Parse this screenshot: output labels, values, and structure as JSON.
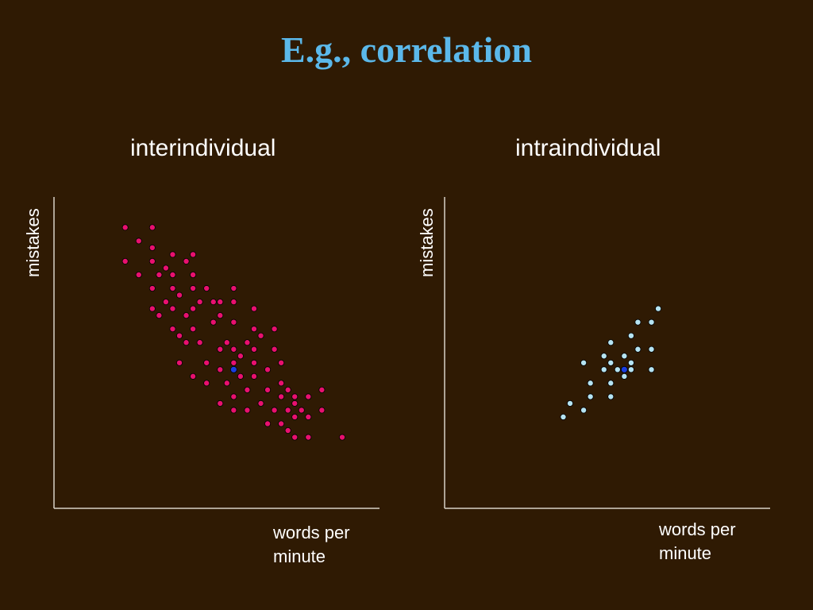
{
  "slide": {
    "title": "E.g., correlation"
  },
  "colors": {
    "background": "#2f1a03",
    "title": "#5bb8ea",
    "axis": "#d8d2c8",
    "interindividual_points": "#e8116e",
    "intraindividual_points": "#b6e4f2",
    "mean_point": "#1a3ee0"
  },
  "chart_data": [
    {
      "type": "scatter",
      "title": "interindividual",
      "xlabel": "words per minute",
      "ylabel": "mistakes",
      "xlim": [
        0,
        48
      ],
      "ylim": [
        0,
        46
      ],
      "grid": false,
      "tick_labels": false,
      "points": [
        [
          10.5,
          41.5
        ],
        [
          14.5,
          41.5
        ],
        [
          12.5,
          39.5
        ],
        [
          14.5,
          38.5
        ],
        [
          10.5,
          36.5
        ],
        [
          14.5,
          36.5
        ],
        [
          17.5,
          37.5
        ],
        [
          19.5,
          36.5
        ],
        [
          20.5,
          37.5
        ],
        [
          16.5,
          35.5
        ],
        [
          12.5,
          34.5
        ],
        [
          15.5,
          34.5
        ],
        [
          17.5,
          34.5
        ],
        [
          20.5,
          34.5
        ],
        [
          14.5,
          32.5
        ],
        [
          17.5,
          32.5
        ],
        [
          20.5,
          32.5
        ],
        [
          22.5,
          32.5
        ],
        [
          26.5,
          32.5
        ],
        [
          18.5,
          31.5
        ],
        [
          16.5,
          30.5
        ],
        [
          21.5,
          30.5
        ],
        [
          23.5,
          30.5
        ],
        [
          24.5,
          30.5
        ],
        [
          26.5,
          30.5
        ],
        [
          14.5,
          29.5
        ],
        [
          17.5,
          29.5
        ],
        [
          20.5,
          29.5
        ],
        [
          29.5,
          29.5
        ],
        [
          15.5,
          28.5
        ],
        [
          19.5,
          28.5
        ],
        [
          24.5,
          28.5
        ],
        [
          23.5,
          27.5
        ],
        [
          26.5,
          27.5
        ],
        [
          17.5,
          26.5
        ],
        [
          20.5,
          26.5
        ],
        [
          29.5,
          26.5
        ],
        [
          32.5,
          26.5
        ],
        [
          18.5,
          25.5
        ],
        [
          30.5,
          25.5
        ],
        [
          19.5,
          24.5
        ],
        [
          21.5,
          24.5
        ],
        [
          25.5,
          24.5
        ],
        [
          28.5,
          24.5
        ],
        [
          24.5,
          23.5
        ],
        [
          26.5,
          23.5
        ],
        [
          29.5,
          23.5
        ],
        [
          32.5,
          23.5
        ],
        [
          27.5,
          22.5
        ],
        [
          18.5,
          21.5
        ],
        [
          22.5,
          21.5
        ],
        [
          26.5,
          21.5
        ],
        [
          29.5,
          21.5
        ],
        [
          33.5,
          21.5
        ],
        [
          24.5,
          20.5
        ],
        [
          31.5,
          20.5
        ],
        [
          20.5,
          19.5
        ],
        [
          27.5,
          19.5
        ],
        [
          29.5,
          19.5
        ],
        [
          22.5,
          18.5
        ],
        [
          25.5,
          18.5
        ],
        [
          33.5,
          18.5
        ],
        [
          28.5,
          17.5
        ],
        [
          31.5,
          17.5
        ],
        [
          34.5,
          17.5
        ],
        [
          39.5,
          17.5
        ],
        [
          26.5,
          16.5
        ],
        [
          33.5,
          16.5
        ],
        [
          35.5,
          16.5
        ],
        [
          37.5,
          16.5
        ],
        [
          30.5,
          15.5
        ],
        [
          35.5,
          15.5
        ],
        [
          24.5,
          15.5
        ],
        [
          28.5,
          14.5
        ],
        [
          26.5,
          14.5
        ],
        [
          32.5,
          14.5
        ],
        [
          34.5,
          14.5
        ],
        [
          36.5,
          14.5
        ],
        [
          39.5,
          14.5
        ],
        [
          35.5,
          13.5
        ],
        [
          37.5,
          13.5
        ],
        [
          31.5,
          12.5
        ],
        [
          33.5,
          12.5
        ],
        [
          34.5,
          11.5
        ],
        [
          35.5,
          10.5
        ],
        [
          37.5,
          10.5
        ],
        [
          42.5,
          10.5
        ]
      ],
      "mean_point": [
        26.5,
        20.5
      ]
    },
    {
      "type": "scatter",
      "title": "intraindividual",
      "xlabel": "words per minute",
      "ylabel": "mistakes",
      "xlim": [
        0,
        48
      ],
      "ylim": [
        0,
        46
      ],
      "grid": false,
      "tick_labels": false,
      "points": [
        [
          31.5,
          29.5
        ],
        [
          28.5,
          27.5
        ],
        [
          30.5,
          27.5
        ],
        [
          27.5,
          25.5
        ],
        [
          24.5,
          24.5
        ],
        [
          28.5,
          23.5
        ],
        [
          30.5,
          23.5
        ],
        [
          23.5,
          22.5
        ],
        [
          26.5,
          22.5
        ],
        [
          20.5,
          21.5
        ],
        [
          24.5,
          21.5
        ],
        [
          27.5,
          21.5
        ],
        [
          23.5,
          20.5
        ],
        [
          25.5,
          20.5
        ],
        [
          30.5,
          20.5
        ],
        [
          27.5,
          20.5
        ],
        [
          26.5,
          19.5
        ],
        [
          21.5,
          18.5
        ],
        [
          24.5,
          18.5
        ],
        [
          21.5,
          16.5
        ],
        [
          24.5,
          16.5
        ],
        [
          18.5,
          15.5
        ],
        [
          20.5,
          14.5
        ],
        [
          17.5,
          13.5
        ]
      ],
      "mean_point": [
        26.5,
        20.5
      ]
    }
  ]
}
